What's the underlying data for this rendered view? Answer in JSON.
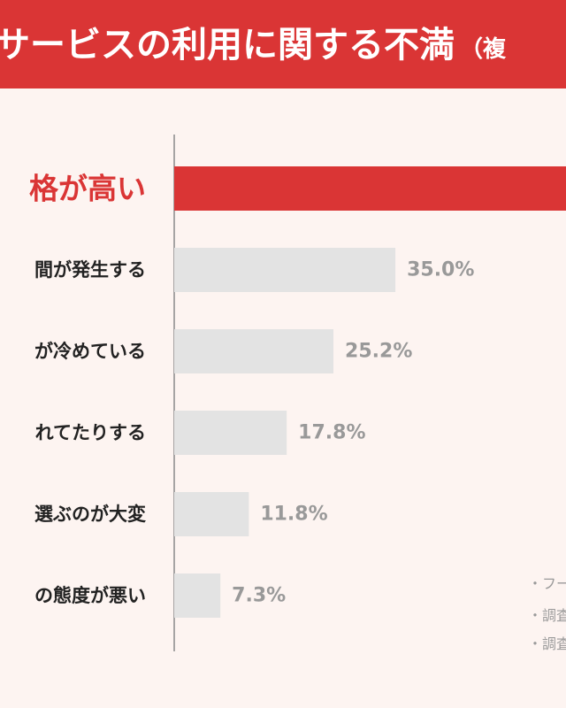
{
  "header": {
    "title": "サービスの利用に関する不満",
    "subtitle": "（複"
  },
  "colors": {
    "accent": "#da3535",
    "bar": "#e3e3e3",
    "label": "#222222",
    "value": "#999999"
  },
  "chart_data": {
    "type": "bar",
    "orientation": "horizontal",
    "categories": [
      "格が高い",
      "間が発生する",
      "が冷めている",
      "れてたりする",
      "選ぶのが大変",
      "の態度が悪い"
    ],
    "values": [
      null,
      35.0,
      25.2,
      17.8,
      11.8,
      7.3
    ],
    "value_labels": [
      "",
      "35.0%",
      "25.2%",
      "17.8%",
      "11.8%",
      "7.3%"
    ],
    "highlight_index": 0,
    "xlim": [
      0,
      62
    ],
    "grid": false,
    "title": "",
    "xlabel": "",
    "ylabel": ""
  },
  "notes": [
    "・フー",
    "・調査",
    "・調査"
  ]
}
